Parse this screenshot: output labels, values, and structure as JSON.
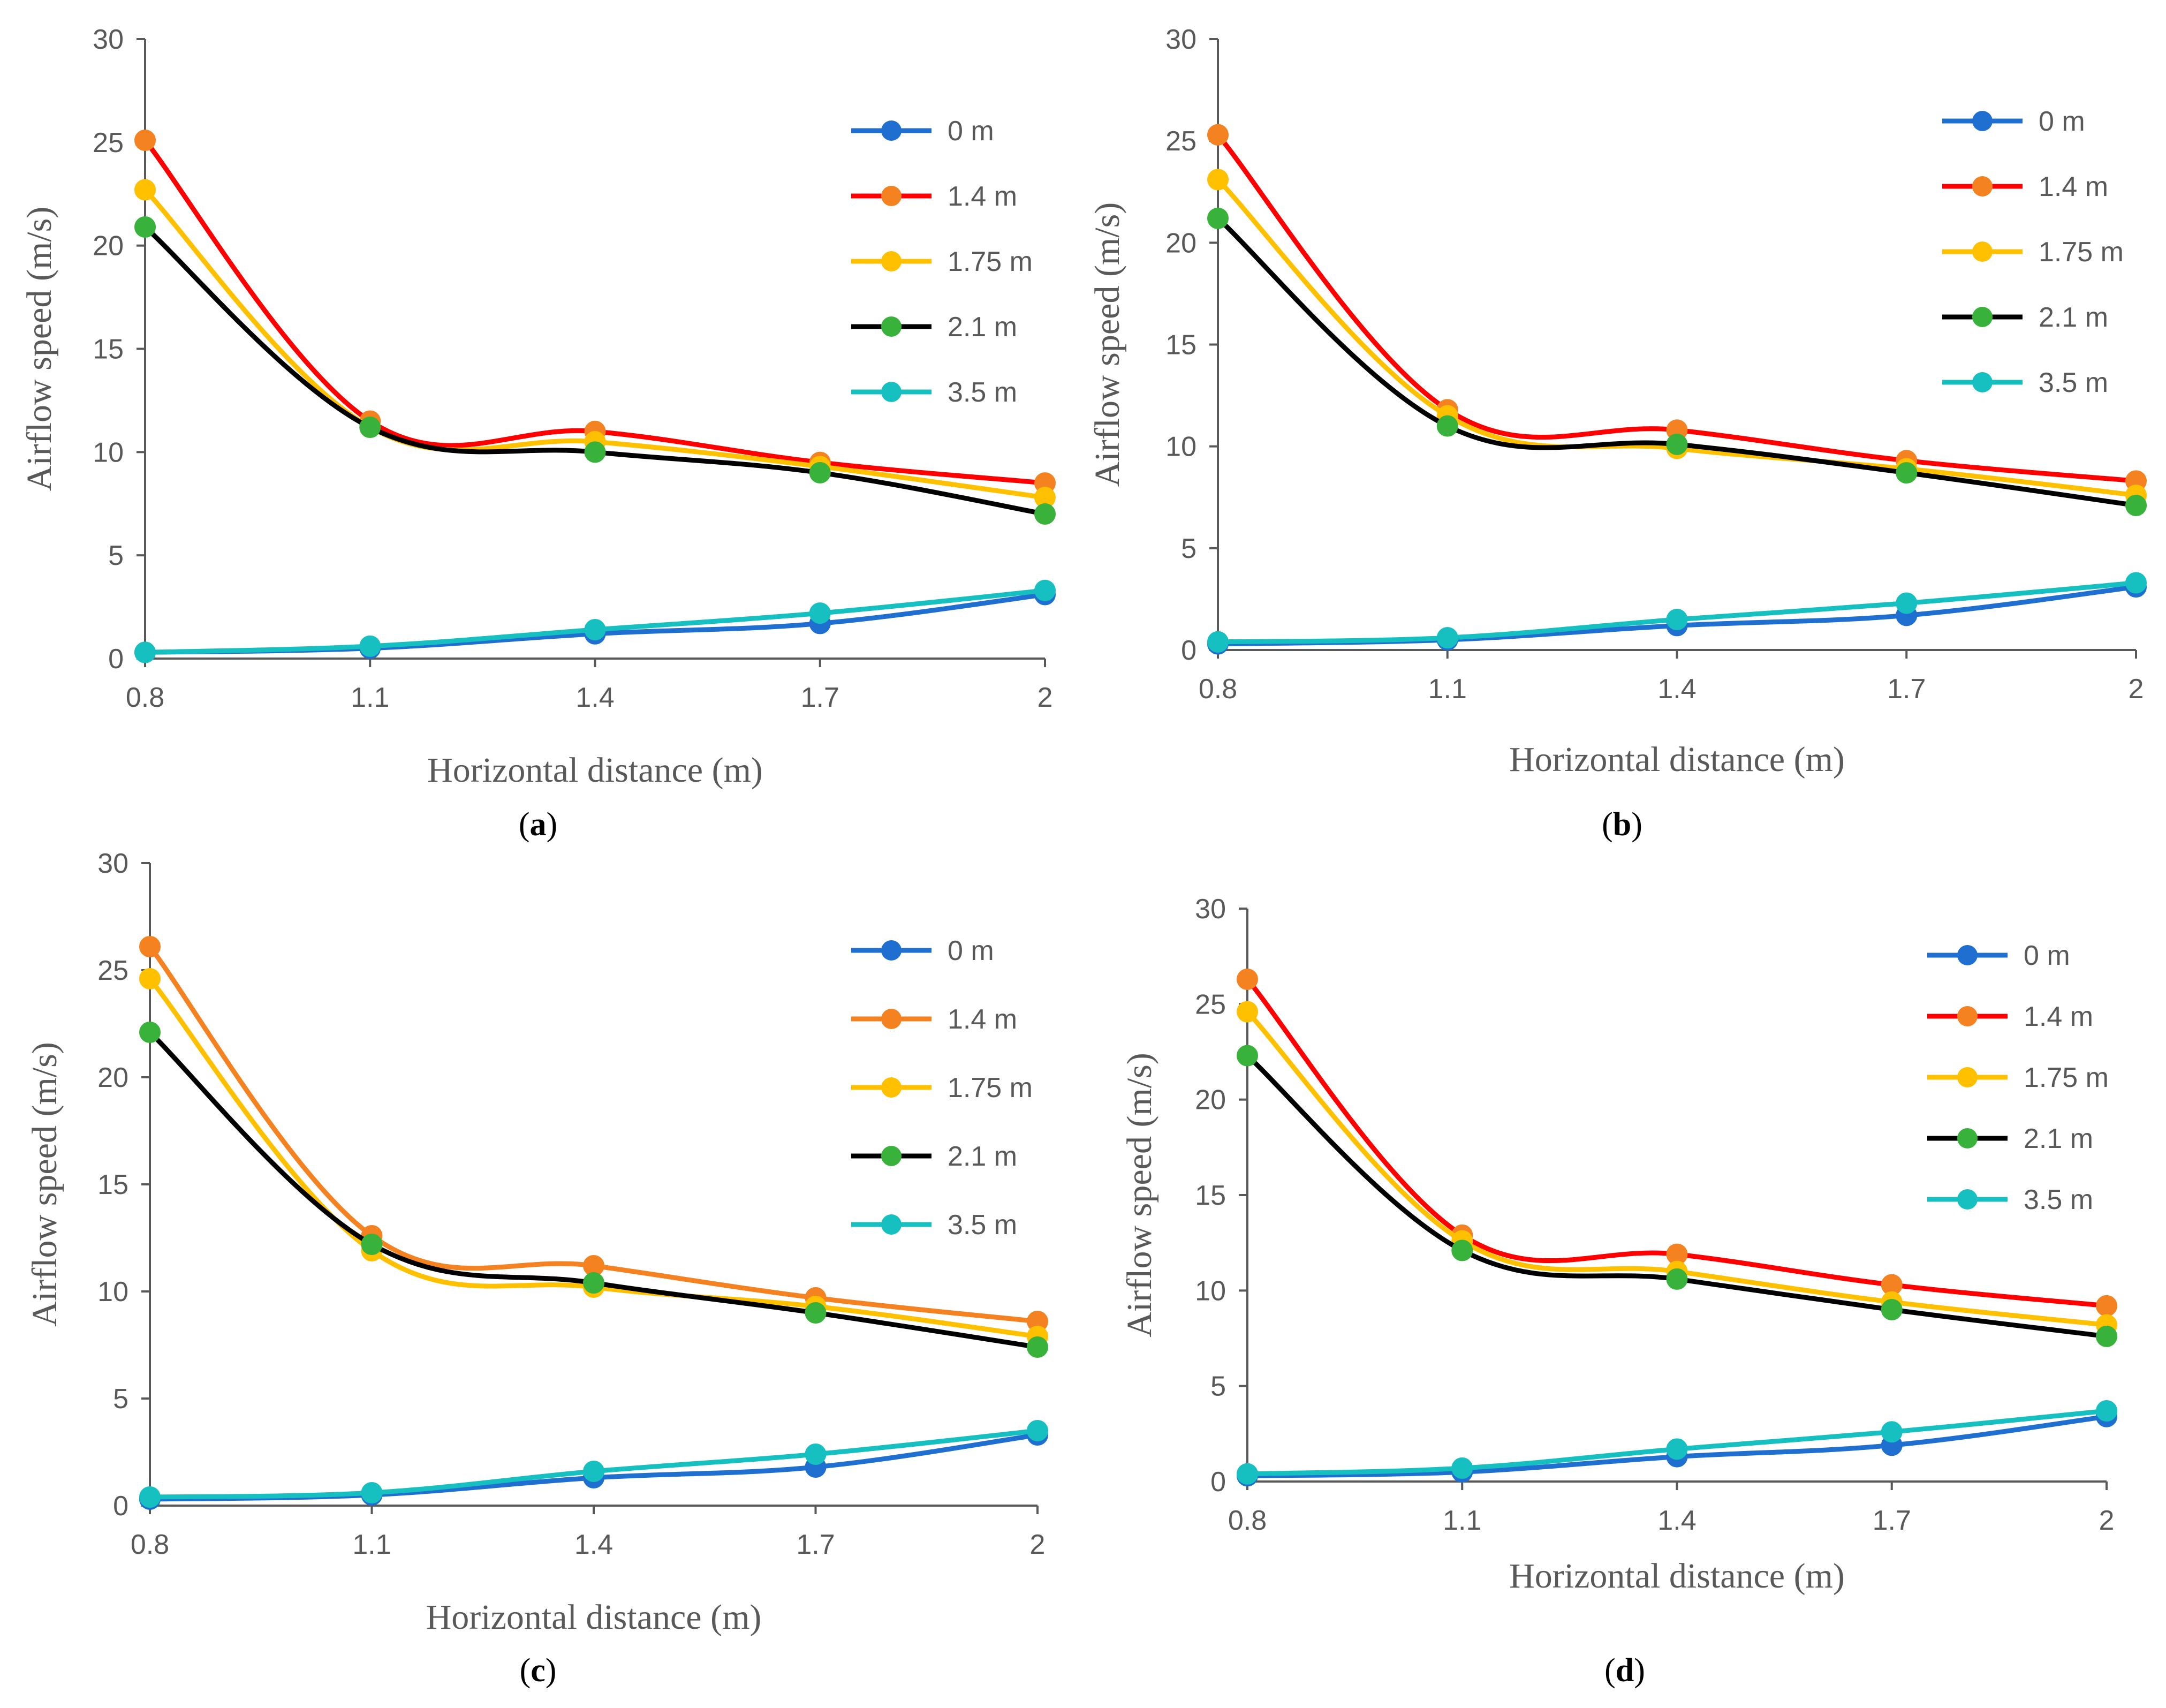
{
  "figure": {
    "colors": {
      "axis": "#595959",
      "text": "#595959",
      "caption": "#000000",
      "series_0m": "#1f6fd1",
      "series_14m_line": "#ff0000",
      "series_14m_marker": "#f58220",
      "series_175m": "#ffc000",
      "series_21m_line": "#000000",
      "series_21m_marker": "#38b23a",
      "series_35m": "#16c0c0"
    }
  },
  "chart_data": [
    {
      "id": "a",
      "type": "line",
      "caption_open": "(",
      "caption_letter": "a",
      "caption_close": ")",
      "xlabel": "Horizontal distance (m)",
      "ylabel": "Airflow speed (m/s)",
      "x": [
        0.8,
        1.1,
        1.4,
        1.7,
        2.0
      ],
      "x_tick_labels": [
        "0.8",
        "1.1",
        "1.4",
        "1.7",
        "2"
      ],
      "ylim": [
        0,
        30
      ],
      "y_ticks": [
        "0",
        "5",
        "10",
        "15",
        "20",
        "25",
        "30"
      ],
      "grid": false,
      "legend_position": "top-right",
      "series": [
        {
          "name": "0 m",
          "line_color": "#1f6fd1",
          "marker_color": "#1f6fd1",
          "values": [
            0.3,
            0.5,
            1.2,
            1.7,
            3.1
          ]
        },
        {
          "name": "1.4 m",
          "line_color": "#ff0000",
          "marker_color": "#f58220",
          "values": [
            25.1,
            11.5,
            11.0,
            9.5,
            8.5
          ]
        },
        {
          "name": "1.75 m",
          "line_color": "#ffc000",
          "marker_color": "#ffc000",
          "values": [
            22.7,
            11.2,
            10.5,
            9.3,
            7.8
          ]
        },
        {
          "name": "2.1 m",
          "line_color": "#000000",
          "marker_color": "#38b23a",
          "values": [
            20.9,
            11.2,
            10.0,
            9.0,
            7.0
          ]
        },
        {
          "name": "3.5 m",
          "line_color": "#16c0c0",
          "marker_color": "#16c0c0",
          "values": [
            0.3,
            0.6,
            1.4,
            2.2,
            3.3
          ]
        }
      ]
    },
    {
      "id": "b",
      "type": "line",
      "caption_open": "(",
      "caption_letter": "b",
      "caption_close": ")",
      "xlabel": "Horizontal distance (m)",
      "ylabel": "Airflow speed (m/s)",
      "x": [
        0.8,
        1.1,
        1.4,
        1.7,
        2.0
      ],
      "x_tick_labels": [
        "0.8",
        "1.1",
        "1.4",
        "1.7",
        "2"
      ],
      "ylim": [
        0,
        30
      ],
      "y_ticks": [
        "0",
        "5",
        "10",
        "15",
        "20",
        "25",
        "30"
      ],
      "grid": false,
      "legend_position": "top-right",
      "series": [
        {
          "name": "0 m",
          "line_color": "#1f6fd1",
          "marker_color": "#1f6fd1",
          "values": [
            0.3,
            0.5,
            1.2,
            1.7,
            3.1
          ]
        },
        {
          "name": "1.4 m",
          "line_color": "#ff0000",
          "marker_color": "#f58220",
          "values": [
            25.3,
            11.8,
            10.8,
            9.3,
            8.3
          ]
        },
        {
          "name": "1.75 m",
          "line_color": "#ffc000",
          "marker_color": "#ffc000",
          "values": [
            23.1,
            11.5,
            9.9,
            8.9,
            7.6
          ]
        },
        {
          "name": "2.1 m",
          "line_color": "#000000",
          "marker_color": "#38b23a",
          "values": [
            21.2,
            11.0,
            10.1,
            8.7,
            7.1
          ]
        },
        {
          "name": "3.5 m",
          "line_color": "#16c0c0",
          "marker_color": "#16c0c0",
          "values": [
            0.4,
            0.6,
            1.5,
            2.3,
            3.3
          ]
        }
      ]
    },
    {
      "id": "c",
      "type": "line",
      "caption_open": "(",
      "caption_letter": "c",
      "caption_close": ")",
      "xlabel": "Horizontal distance (m)",
      "ylabel": "Airflow speed (m/s)",
      "x": [
        0.8,
        1.1,
        1.4,
        1.7,
        2.0
      ],
      "x_tick_labels": [
        "0.8",
        "1.1",
        "1.4",
        "1.7",
        "2"
      ],
      "ylim": [
        0,
        30
      ],
      "y_ticks": [
        "0",
        "5",
        "10",
        "15",
        "20",
        "25",
        "30"
      ],
      "grid": false,
      "legend_position": "top-right",
      "series": [
        {
          "name": "0 m",
          "line_color": "#1f6fd1",
          "marker_color": "#1f6fd1",
          "values": [
            0.3,
            0.5,
            1.3,
            1.8,
            3.3
          ]
        },
        {
          "name": "1.4 m",
          "line_color": "#f58220",
          "marker_color": "#f58220",
          "values": [
            26.1,
            12.6,
            11.2,
            9.7,
            8.6
          ]
        },
        {
          "name": "1.75 m",
          "line_color": "#ffc000",
          "marker_color": "#ffc000",
          "values": [
            24.6,
            11.9,
            10.2,
            9.3,
            7.9
          ]
        },
        {
          "name": "2.1 m",
          "line_color": "#000000",
          "marker_color": "#38b23a",
          "values": [
            22.1,
            12.2,
            10.4,
            9.0,
            7.4
          ]
        },
        {
          "name": "3.5 m",
          "line_color": "#16c0c0",
          "marker_color": "#16c0c0",
          "values": [
            0.4,
            0.6,
            1.6,
            2.4,
            3.5
          ]
        }
      ]
    },
    {
      "id": "d",
      "type": "line",
      "caption_open": "(",
      "caption_letter": "d",
      "caption_close": ")",
      "xlabel": "Horizontal distance (m)",
      "ylabel": "Airflow speed (m/s)",
      "x": [
        0.8,
        1.1,
        1.4,
        1.7,
        2.0
      ],
      "x_tick_labels": [
        "0.8",
        "1.1",
        "1.4",
        "1.7",
        "2"
      ],
      "ylim": [
        0,
        30
      ],
      "y_ticks": [
        "0",
        "5",
        "10",
        "15",
        "20",
        "25",
        "30"
      ],
      "grid": false,
      "legend_position": "top-right",
      "series": [
        {
          "name": "0 m",
          "line_color": "#1f6fd1",
          "marker_color": "#1f6fd1",
          "values": [
            0.3,
            0.5,
            1.3,
            1.9,
            3.4
          ]
        },
        {
          "name": "1.4 m",
          "line_color": "#ff0000",
          "marker_color": "#f58220",
          "values": [
            26.3,
            12.9,
            11.9,
            10.3,
            9.2
          ]
        },
        {
          "name": "1.75 m",
          "line_color": "#ffc000",
          "marker_color": "#ffc000",
          "values": [
            24.6,
            12.6,
            11.0,
            9.4,
            8.2
          ]
        },
        {
          "name": "2.1 m",
          "line_color": "#000000",
          "marker_color": "#38b23a",
          "values": [
            22.3,
            12.1,
            10.6,
            9.0,
            7.6
          ]
        },
        {
          "name": "3.5 m",
          "line_color": "#16c0c0",
          "marker_color": "#16c0c0",
          "values": [
            0.4,
            0.7,
            1.7,
            2.6,
            3.7
          ]
        }
      ]
    }
  ]
}
